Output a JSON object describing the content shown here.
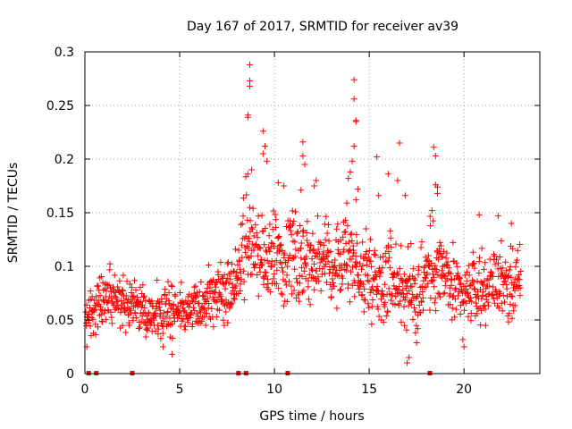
{
  "chart_data": {
    "type": "scatter",
    "title": "Day 167 of 2017, SRMTID for receiver av39",
    "xlabel": "GPS time / hours",
    "ylabel": "SRMTID / TECUs",
    "xlim": [
      0,
      24
    ],
    "ylim": [
      0,
      0.3
    ],
    "x_ticks": [
      0,
      5,
      10,
      15,
      20
    ],
    "x_tick_labels": [
      "0",
      "5",
      "10",
      "15",
      "20"
    ],
    "y_ticks": [
      0,
      0.05,
      0.1,
      0.15,
      0.2,
      0.25,
      0.3
    ],
    "y_tick_labels": [
      "0",
      "0.05",
      "0.1",
      "0.15",
      "0.2",
      "0.25",
      "0.3"
    ],
    "grid": true,
    "marker": "plus",
    "color": "#ff0000",
    "baseline_markers_x": [
      0.2,
      0.6,
      2.5,
      8.1,
      8.5,
      10.7,
      18.2
    ],
    "envelope": {
      "x": [
        0,
        0.5,
        1,
        2,
        3,
        4,
        5,
        6,
        7,
        7.5,
        8,
        8.5,
        9,
        9.5,
        10,
        10.5,
        11,
        11.5,
        12,
        12.5,
        13,
        13.5,
        14,
        14.5,
        15,
        15.5,
        16,
        16.5,
        17,
        17.5,
        18,
        18.5,
        19,
        19.5,
        20,
        20.5,
        21,
        21.5,
        22,
        22.5,
        23
      ],
      "low": [
        0.03,
        0.03,
        0.04,
        0.04,
        0.03,
        0.02,
        0.03,
        0.03,
        0.04,
        0.04,
        0.05,
        0.05,
        0.06,
        0.06,
        0.06,
        0.05,
        0.06,
        0.06,
        0.06,
        0.07,
        0.06,
        0.06,
        0.06,
        0.04,
        0.04,
        0.05,
        0.04,
        0.04,
        0.02,
        0.02,
        0.03,
        0.05,
        0.05,
        0.03,
        0.03,
        0.04,
        0.04,
        0.05,
        0.05,
        0.04,
        0.04
      ],
      "high": [
        0.07,
        0.09,
        0.11,
        0.1,
        0.09,
        0.09,
        0.09,
        0.09,
        0.11,
        0.12,
        0.13,
        0.2,
        0.17,
        0.14,
        0.17,
        0.14,
        0.18,
        0.16,
        0.15,
        0.15,
        0.14,
        0.15,
        0.17,
        0.13,
        0.15,
        0.12,
        0.15,
        0.13,
        0.13,
        0.13,
        0.15,
        0.16,
        0.13,
        0.12,
        0.11,
        0.12,
        0.12,
        0.12,
        0.13,
        0.12,
        0.13
      ]
    },
    "peaks": [
      {
        "x": 8.7,
        "y": 0.288
      },
      {
        "x": 8.7,
        "y": 0.273
      },
      {
        "x": 8.7,
        "y": 0.268
      },
      {
        "x": 8.6,
        "y": 0.241
      },
      {
        "x": 8.6,
        "y": 0.239
      },
      {
        "x": 9.4,
        "y": 0.226
      },
      {
        "x": 9.5,
        "y": 0.212
      },
      {
        "x": 9.6,
        "y": 0.198
      },
      {
        "x": 9.4,
        "y": 0.205
      },
      {
        "x": 8.8,
        "y": 0.19
      },
      {
        "x": 8.6,
        "y": 0.186
      },
      {
        "x": 10.2,
        "y": 0.178
      },
      {
        "x": 10.5,
        "y": 0.175
      },
      {
        "x": 11.5,
        "y": 0.216
      },
      {
        "x": 11.5,
        "y": 0.203
      },
      {
        "x": 11.6,
        "y": 0.195
      },
      {
        "x": 12.2,
        "y": 0.18
      },
      {
        "x": 12.1,
        "y": 0.175
      },
      {
        "x": 11.4,
        "y": 0.171
      },
      {
        "x": 14.2,
        "y": 0.274
      },
      {
        "x": 14.2,
        "y": 0.256
      },
      {
        "x": 14.3,
        "y": 0.236
      },
      {
        "x": 14.3,
        "y": 0.235
      },
      {
        "x": 14.2,
        "y": 0.212
      },
      {
        "x": 14.1,
        "y": 0.198
      },
      {
        "x": 14.0,
        "y": 0.188
      },
      {
        "x": 13.9,
        "y": 0.182
      },
      {
        "x": 14.4,
        "y": 0.172
      },
      {
        "x": 14.3,
        "y": 0.162
      },
      {
        "x": 15.4,
        "y": 0.202
      },
      {
        "x": 16.6,
        "y": 0.215
      },
      {
        "x": 16.0,
        "y": 0.186
      },
      {
        "x": 16.5,
        "y": 0.18
      },
      {
        "x": 16.9,
        "y": 0.166
      },
      {
        "x": 18.4,
        "y": 0.211
      },
      {
        "x": 18.5,
        "y": 0.203
      },
      {
        "x": 18.5,
        "y": 0.176
      },
      {
        "x": 18.6,
        "y": 0.174
      },
      {
        "x": 15.5,
        "y": 0.166
      },
      {
        "x": 18.6,
        "y": 0.168
      },
      {
        "x": 20.8,
        "y": 0.148
      },
      {
        "x": 22.5,
        "y": 0.14
      },
      {
        "x": 21.8,
        "y": 0.147
      },
      {
        "x": 17.0,
        "y": 0.01
      },
      {
        "x": 17.1,
        "y": 0.015
      },
      {
        "x": 20.0,
        "y": 0.025
      },
      {
        "x": 4.6,
        "y": 0.018
      },
      {
        "x": 0.1,
        "y": 0.025
      }
    ]
  }
}
